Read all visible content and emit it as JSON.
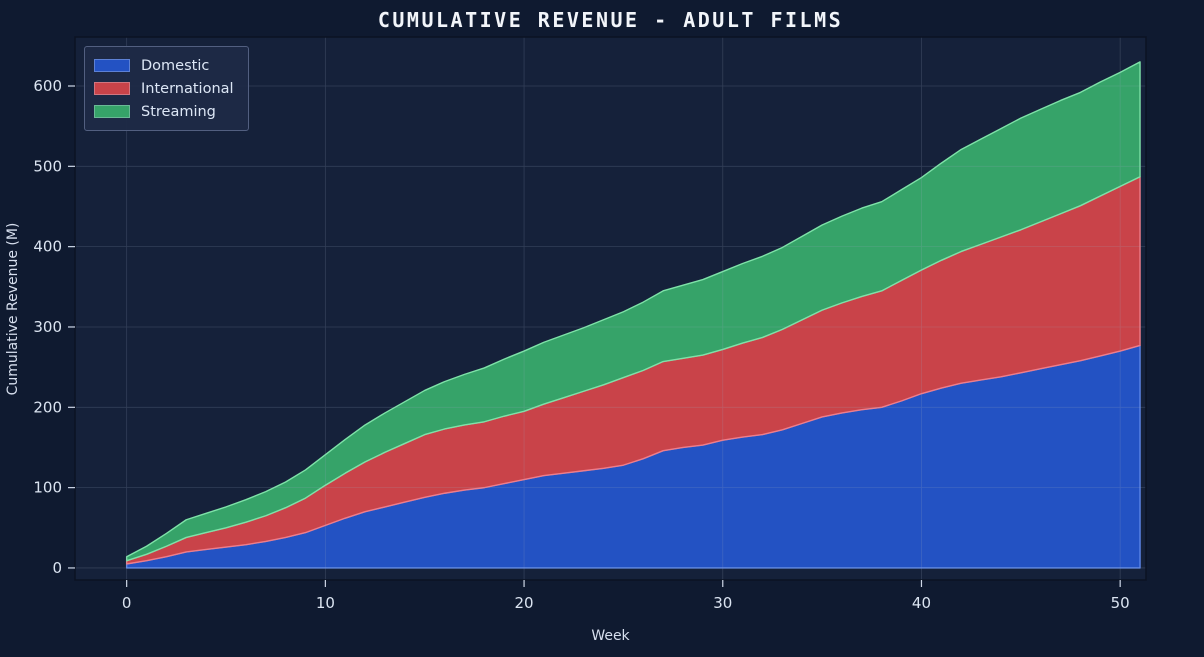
{
  "chart_data": {
    "type": "area",
    "stacked": true,
    "title": "CUMULATIVE REVENUE - ADULT FILMS",
    "xlabel": "Week",
    "ylabel": "Cumulative Revenue (M)",
    "x": [
      0,
      1,
      2,
      3,
      4,
      5,
      6,
      7,
      8,
      9,
      10,
      11,
      12,
      13,
      14,
      15,
      16,
      17,
      18,
      19,
      20,
      21,
      22,
      23,
      24,
      25,
      26,
      27,
      28,
      29,
      30,
      31,
      32,
      33,
      34,
      35,
      36,
      37,
      38,
      39,
      40,
      41,
      42,
      43,
      44,
      45,
      46,
      47,
      48,
      49,
      50,
      51
    ],
    "series": [
      {
        "name": "Domestic",
        "color": "#2352c3",
        "edge": "#5d87ea",
        "values": [
          5,
          9,
          14,
          20,
          23,
          26,
          29,
          33,
          38,
          44,
          53,
          62,
          70,
          76,
          82,
          88,
          93,
          97,
          100,
          105,
          110,
          115,
          118,
          121,
          124,
          128,
          136,
          146,
          150,
          153,
          159,
          163,
          166,
          172,
          180,
          188,
          193,
          197,
          200,
          208,
          217,
          224,
          230,
          234,
          238,
          243,
          248,
          253,
          258,
          264,
          270,
          277
        ]
      },
      {
        "name": "International",
        "color": "#c94349",
        "edge": "#ef7d8a",
        "values": [
          4,
          8,
          13,
          18,
          21,
          24,
          28,
          32,
          37,
          43,
          50,
          56,
          62,
          68,
          73,
          78,
          80,
          81,
          82,
          84,
          85,
          89,
          94,
          99,
          104,
          109,
          110,
          111,
          111,
          112,
          113,
          117,
          121,
          125,
          129,
          133,
          137,
          141,
          145,
          150,
          154,
          159,
          164,
          169,
          174,
          178,
          183,
          188,
          193,
          199,
          205,
          210
        ]
      },
      {
        "name": "Streaming",
        "color": "#36a369",
        "edge": "#7ee2a8",
        "values": [
          5,
          10,
          16,
          22,
          24,
          26,
          28,
          30,
          32,
          35,
          38,
          42,
          46,
          49,
          52,
          55,
          59,
          63,
          67,
          71,
          75,
          77,
          78,
          79,
          81,
          82,
          85,
          88,
          91,
          94,
          97,
          99,
          101,
          102,
          104,
          106,
          108,
          110,
          111,
          113,
          115,
          121,
          127,
          131,
          135,
          139,
          140,
          141,
          141,
          142,
          142,
          143
        ]
      }
    ],
    "xticks": [
      0,
      10,
      20,
      30,
      40,
      50
    ],
    "yticks": [
      0,
      100,
      200,
      300,
      400,
      500,
      600
    ],
    "xlim": [
      -2.6,
      51.3
    ],
    "ylim": [
      -15,
      661
    ],
    "grid": true,
    "legend_position": "upper left"
  },
  "colors": {
    "background": "#0f1a30",
    "plot_background": "#15213a",
    "gridline": "#9aa7bf",
    "spine": "#0b1222",
    "tick": "#cfd8e8",
    "text": "#dbe4f1"
  }
}
